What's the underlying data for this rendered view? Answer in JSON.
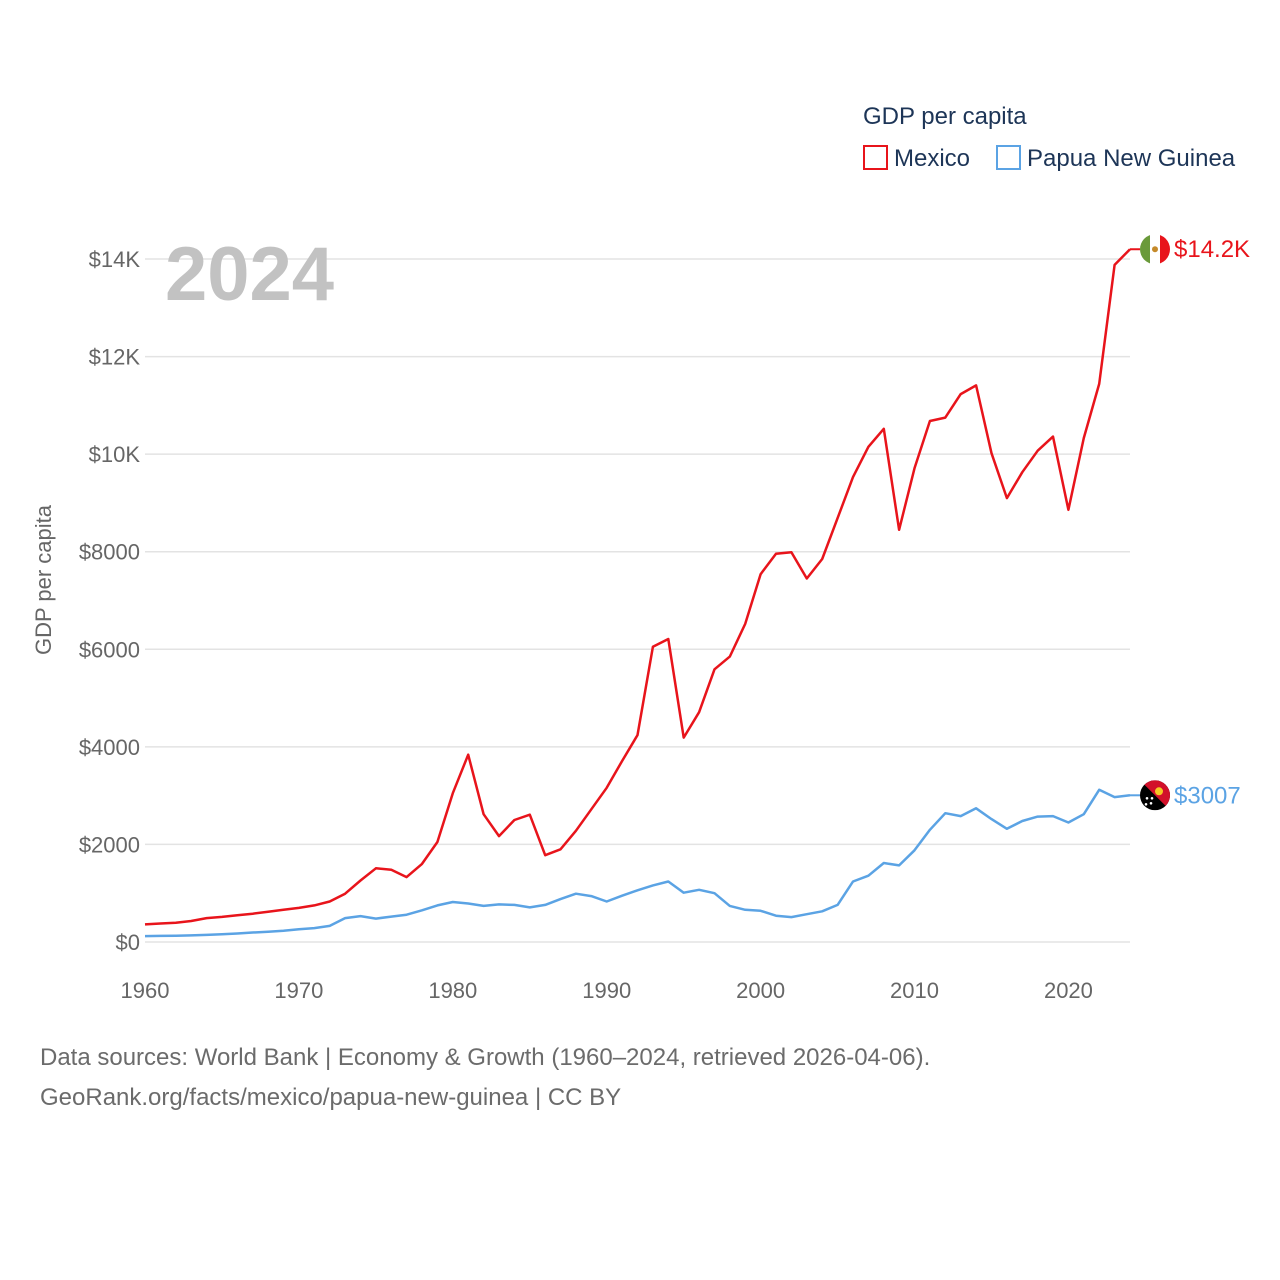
{
  "chart_data": {
    "type": "line",
    "year_label": "2024",
    "ylabel": "GDP per capita",
    "xlabel": "",
    "xlim": [
      1960,
      2024
    ],
    "ylim": [
      0,
      14500
    ],
    "grid": true,
    "x_ticks": [
      1960,
      1970,
      1980,
      1990,
      2000,
      2010,
      2020
    ],
    "x_tick_labels": [
      "1960",
      "1970",
      "1980",
      "1990",
      "2000",
      "2010",
      "2020"
    ],
    "y_ticks": [
      0,
      2000,
      4000,
      6000,
      8000,
      10000,
      12000,
      14000
    ],
    "y_tick_labels": [
      "$0",
      "$2000",
      "$4000",
      "$6000",
      "$8000",
      "$10K",
      "$12K",
      "$14K"
    ],
    "legend": {
      "title": "GDP per capita",
      "position": "top-right",
      "entries": [
        "Mexico",
        "Papua New Guinea"
      ]
    },
    "x": [
      1960,
      1961,
      1962,
      1963,
      1964,
      1965,
      1966,
      1967,
      1968,
      1969,
      1970,
      1971,
      1972,
      1973,
      1974,
      1975,
      1976,
      1977,
      1978,
      1979,
      1980,
      1981,
      1982,
      1983,
      1984,
      1985,
      1986,
      1987,
      1988,
      1989,
      1990,
      1991,
      1992,
      1993,
      1994,
      1995,
      1996,
      1997,
      1998,
      1999,
      2000,
      2001,
      2002,
      2003,
      2004,
      2005,
      2006,
      2007,
      2008,
      2009,
      2010,
      2011,
      2012,
      2013,
      2014,
      2015,
      2016,
      2017,
      2018,
      2019,
      2020,
      2021,
      2022,
      2023,
      2024
    ],
    "series": [
      {
        "name": "Mexico",
        "color": "#e8141b",
        "end_label": "$14.2K",
        "flag": "mexico-flag",
        "values": [
          360,
          380,
          395,
          430,
          490,
          515,
          550,
          580,
          620,
          660,
          700,
          750,
          830,
          990,
          1260,
          1510,
          1480,
          1330,
          1600,
          2050,
          3050,
          3840,
          2620,
          2170,
          2500,
          2610,
          1780,
          1900,
          2280,
          2720,
          3160,
          3710,
          4240,
          6050,
          6210,
          4190,
          4710,
          5590,
          5850,
          6520,
          7540,
          7960,
          7990,
          7450,
          7850,
          8690,
          9530,
          10150,
          10520,
          8450,
          9710,
          10680,
          10750,
          11230,
          11410,
          10020,
          9100,
          9630,
          10070,
          10360,
          8860,
          10330,
          11440,
          13880,
          14200
        ]
      },
      {
        "name": "Papua New Guinea",
        "color": "#5ba3e4",
        "end_label": "$3007",
        "flag": "papua-new-guinea-flag",
        "values": [
          120,
          125,
          130,
          135,
          145,
          160,
          175,
          195,
          210,
          230,
          260,
          285,
          330,
          490,
          530,
          480,
          520,
          560,
          650,
          750,
          820,
          790,
          740,
          770,
          760,
          710,
          760,
          880,
          990,
          940,
          830,
          950,
          1060,
          1160,
          1240,
          1010,
          1070,
          1000,
          740,
          660,
          640,
          540,
          510,
          570,
          630,
          760,
          1240,
          1360,
          1620,
          1570,
          1880,
          2300,
          2640,
          2580,
          2740,
          2520,
          2320,
          2480,
          2570,
          2580,
          2450,
          2620,
          3120,
          2970,
          3007
        ]
      }
    ]
  },
  "footer": {
    "line1": "Data sources: World Bank | Economy & Growth (1960–2024, retrieved 2026-04-06).",
    "line2": "GeoRank.org/facts/mexico/papua-new-guinea | CC BY"
  }
}
